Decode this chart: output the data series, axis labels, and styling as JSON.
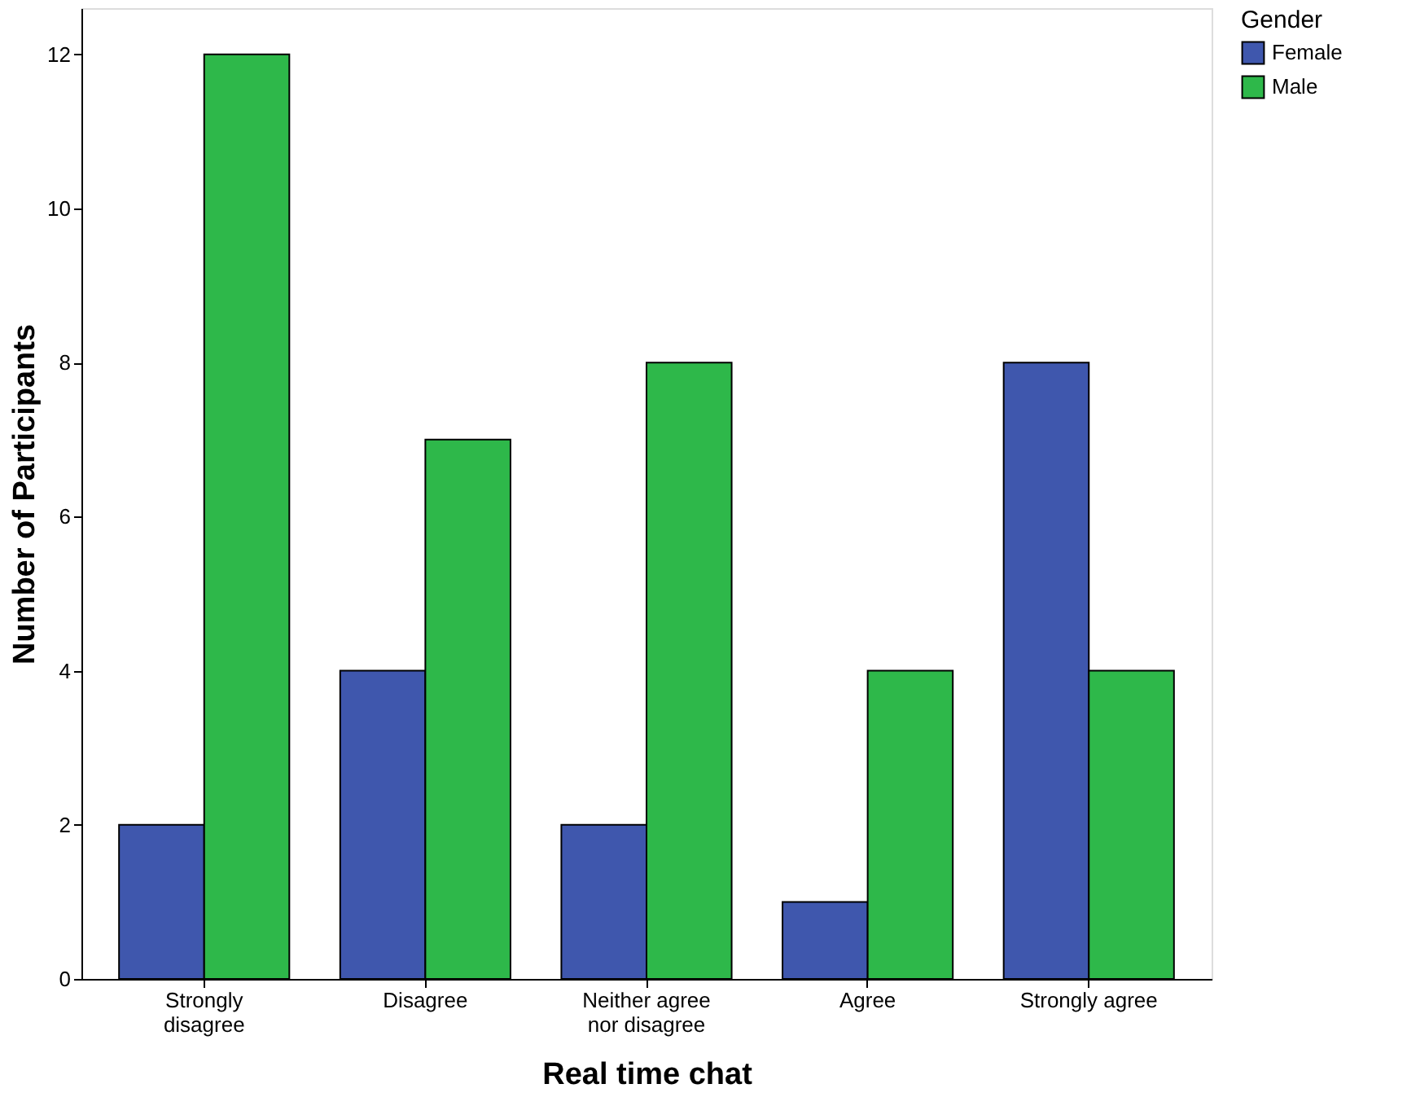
{
  "chart_data": {
    "type": "bar",
    "xlabel": "Real time chat",
    "ylabel": "Number of Participants",
    "legend_title": "Gender",
    "categories": [
      "Strongly\ndisagree",
      "Disagree",
      "Neither agree\nnor disagree",
      "Agree",
      "Strongly agree"
    ],
    "series": [
      {
        "name": "Female",
        "color": "#3f57ad",
        "values": [
          2,
          4,
          2,
          1,
          8
        ]
      },
      {
        "name": "Male",
        "color": "#2eb84a",
        "values": [
          12,
          7,
          8,
          4,
          4
        ]
      }
    ],
    "ylim": [
      0,
      12.6
    ],
    "yticks": [
      0,
      2,
      4,
      6,
      8,
      10,
      12
    ],
    "grid": false,
    "legend": "top right"
  }
}
